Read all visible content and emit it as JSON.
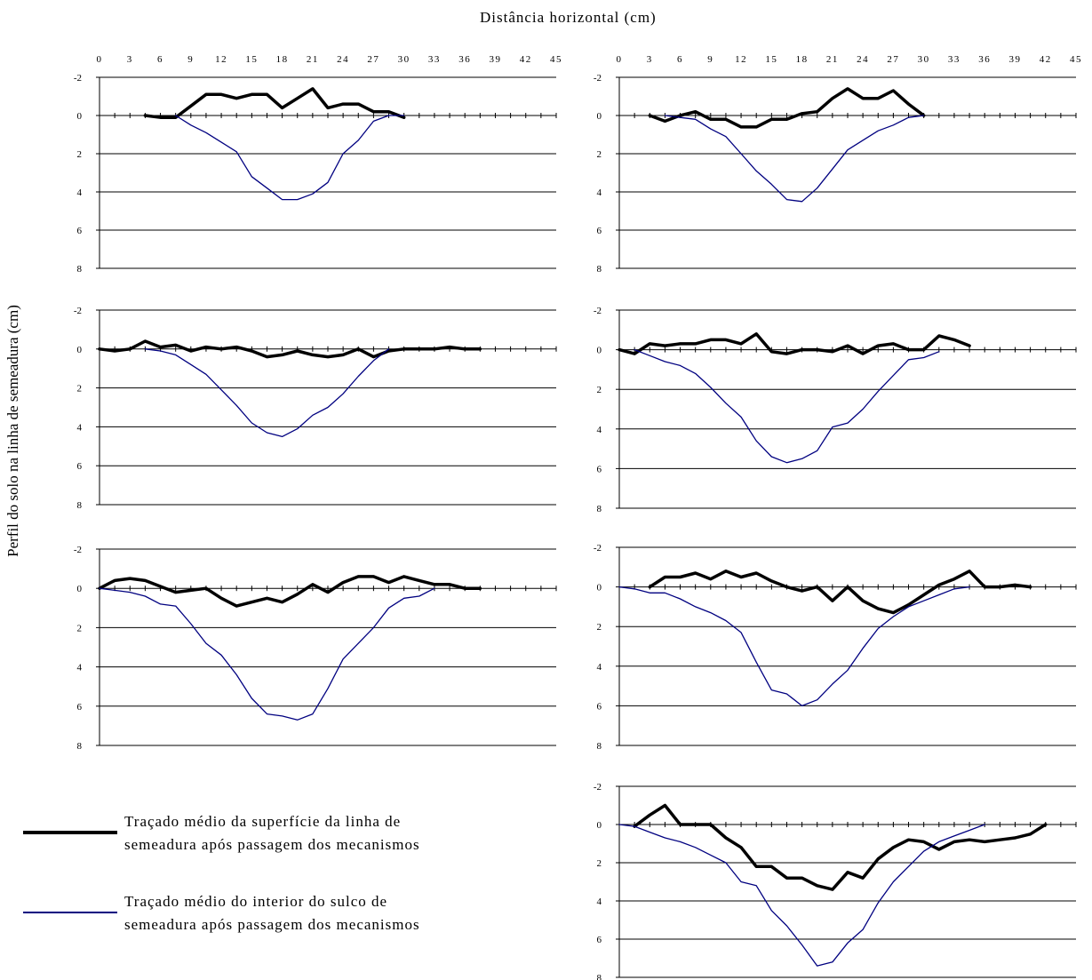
{
  "x_axis_title": "Distância horizontal (cm)",
  "y_axis_title": "Perfil do solo na linha de semeadura (cm)",
  "legend": {
    "surface_line1": "Traçado médio da superfície da linha de",
    "surface_line2": "semeadura após passagem dos mecanismos",
    "interior_line1": "Traçado médio do interior do sulco de",
    "interior_line2": "semeadura após passagem dos mecanismos"
  },
  "colors": {
    "surface": "#000000",
    "interior": "#000080"
  },
  "chart_data": [
    {
      "type": "line",
      "panel": "left-top",
      "xlim": [
        0,
        45
      ],
      "ylim": [
        -2,
        8
      ],
      "y_inverted": true,
      "x_ticks": [
        0,
        3,
        6,
        9,
        12,
        15,
        18,
        21,
        24,
        27,
        30,
        33,
        36,
        39,
        42,
        45
      ],
      "y_ticks": [
        -2,
        0,
        2,
        4,
        6,
        8
      ],
      "grid": "horizontal",
      "series": [
        {
          "x": [
            4.5,
            6,
            7.5,
            9,
            10.5,
            12,
            13.5,
            15,
            16.5,
            18,
            19.5,
            21,
            22.5,
            24,
            25.5,
            27,
            28.5,
            30
          ],
          "y": [
            0,
            0.1,
            0.1,
            -0.5,
            -1.1,
            -1.1,
            -0.9,
            -1.1,
            -1.1,
            -0.4,
            -0.9,
            -1.4,
            -0.4,
            -0.6,
            -0.6,
            -0.2,
            -0.2,
            0.1
          ]
        },
        {
          "x": [
            7.5,
            9,
            10.5,
            12,
            13.5,
            15,
            16.5,
            18,
            19.5,
            21,
            22.5,
            24,
            25.5,
            27,
            28.5,
            30
          ],
          "y": [
            0,
            0.5,
            0.9,
            1.4,
            1.9,
            3.2,
            3.8,
            4.4,
            4.4,
            4.1,
            3.5,
            2.0,
            1.3,
            0.3,
            0,
            0
          ]
        }
      ]
    },
    {
      "type": "line",
      "panel": "right-top",
      "xlim": [
        0,
        45
      ],
      "ylim": [
        -2,
        8
      ],
      "y_inverted": true,
      "x_ticks": [
        0,
        3,
        6,
        9,
        12,
        15,
        18,
        21,
        24,
        27,
        30,
        33,
        36,
        39,
        42,
        45
      ],
      "y_ticks": [
        -2,
        0,
        2,
        4,
        6,
        8
      ],
      "grid": "horizontal",
      "series": [
        {
          "x": [
            3,
            4.5,
            6,
            7.5,
            9,
            10.5,
            12,
            13.5,
            15,
            16.5,
            18,
            19.5,
            21,
            22.5,
            24,
            25.5,
            27,
            28.5,
            30
          ],
          "y": [
            0,
            0.3,
            0,
            -0.2,
            0.2,
            0.2,
            0.6,
            0.6,
            0.2,
            0.2,
            -0.1,
            -0.2,
            -0.9,
            -1.4,
            -0.9,
            -0.9,
            -1.3,
            -0.6,
            0
          ]
        },
        {
          "x": [
            4.5,
            6,
            7.5,
            9,
            10.5,
            12,
            13.5,
            15,
            16.5,
            18,
            19.5,
            21,
            22.5,
            24,
            25.5,
            27,
            28.5,
            30
          ],
          "y": [
            0,
            0.1,
            0.2,
            0.7,
            1.1,
            2.0,
            2.9,
            3.6,
            4.4,
            4.5,
            3.8,
            2.8,
            1.8,
            1.3,
            0.8,
            0.5,
            0.1,
            0
          ]
        }
      ]
    },
    {
      "type": "line",
      "panel": "left-middle",
      "xlim": [
        0,
        45
      ],
      "ylim": [
        -2,
        8
      ],
      "y_inverted": true,
      "x_ticks": [],
      "y_ticks": [
        -2,
        0,
        2,
        4,
        6,
        8
      ],
      "grid": "horizontal",
      "series": [
        {
          "x": [
            0,
            1.5,
            3,
            4.5,
            6,
            7.5,
            9,
            10.5,
            12,
            13.5,
            15,
            16.5,
            18,
            19.5,
            21,
            22.5,
            24,
            25.5,
            27,
            28.5,
            30,
            31.5,
            33,
            34.5,
            36,
            37.5
          ],
          "y": [
            0,
            0.1,
            0,
            -0.4,
            -0.1,
            -0.2,
            0.1,
            -0.1,
            0,
            -0.1,
            0.1,
            0.4,
            0.3,
            0.1,
            0.3,
            0.4,
            0.3,
            0,
            0.4,
            0.1,
            0,
            0,
            0,
            -0.1,
            0,
            0
          ]
        },
        {
          "x": [
            4.5,
            6,
            7.5,
            9,
            10.5,
            12,
            13.5,
            15,
            16.5,
            18,
            19.5,
            21,
            22.5,
            24,
            25.5,
            27,
            28.5
          ],
          "y": [
            0,
            0.1,
            0.3,
            0.8,
            1.3,
            2.1,
            2.9,
            3.8,
            4.3,
            4.5,
            4.1,
            3.4,
            3.0,
            2.3,
            1.4,
            0.6,
            0
          ]
        }
      ]
    },
    {
      "type": "line",
      "panel": "right-middle",
      "xlim": [
        0,
        45
      ],
      "ylim": [
        -2,
        8
      ],
      "y_inverted": true,
      "x_ticks": [],
      "y_ticks": [
        -2,
        0,
        2,
        4,
        6,
        8
      ],
      "grid": "horizontal",
      "series": [
        {
          "x": [
            0,
            1.5,
            3,
            4.5,
            6,
            7.5,
            9,
            10.5,
            12,
            13.5,
            15,
            16.5,
            18,
            19.5,
            21,
            22.5,
            24,
            25.5,
            27,
            28.5,
            30,
            31.5,
            33,
            34.5
          ],
          "y": [
            0,
            0.2,
            -0.3,
            -0.2,
            -0.3,
            -0.3,
            -0.5,
            -0.5,
            -0.3,
            -0.8,
            0.1,
            0.2,
            0,
            0,
            0.1,
            -0.2,
            0.2,
            -0.2,
            -0.3,
            0,
            0,
            -0.7,
            -0.5,
            -0.2
          ]
        },
        {
          "x": [
            1.5,
            3,
            4.5,
            6,
            7.5,
            9,
            10.5,
            12,
            13.5,
            15,
            16.5,
            18,
            19.5,
            21,
            22.5,
            24,
            25.5,
            27,
            28.5,
            30,
            31.5
          ],
          "y": [
            0,
            0.3,
            0.6,
            0.8,
            1.2,
            1.9,
            2.7,
            3.4,
            4.6,
            5.4,
            5.7,
            5.5,
            5.1,
            3.9,
            3.7,
            3.0,
            2.1,
            1.3,
            0.5,
            0.4,
            0.1
          ]
        }
      ]
    },
    {
      "type": "line",
      "panel": "left-bottom",
      "xlim": [
        0,
        45
      ],
      "ylim": [
        -2,
        8
      ],
      "y_inverted": true,
      "x_ticks": [],
      "y_ticks": [
        -2,
        0,
        2,
        4,
        6,
        8
      ],
      "grid": "horizontal",
      "series": [
        {
          "x": [
            0,
            1.5,
            3,
            4.5,
            6,
            7.5,
            9,
            10.5,
            12,
            13.5,
            15,
            16.5,
            18,
            19.5,
            21,
            22.5,
            24,
            25.5,
            27,
            28.5,
            30,
            31.5,
            33,
            34.5,
            36,
            37.5
          ],
          "y": [
            0,
            -0.4,
            -0.5,
            -0.4,
            -0.1,
            0.2,
            0.1,
            0,
            0.5,
            0.9,
            0.7,
            0.5,
            0.7,
            0.3,
            -0.2,
            0.2,
            -0.3,
            -0.6,
            -0.6,
            -0.3,
            -0.6,
            -0.4,
            -0.2,
            -0.2,
            0,
            0
          ]
        },
        {
          "x": [
            0,
            1.5,
            3,
            4.5,
            6,
            7.5,
            9,
            10.5,
            12,
            13.5,
            15,
            16.5,
            18,
            19.5,
            21,
            22.5,
            24,
            25.5,
            27,
            28.5,
            30,
            31.5,
            33
          ],
          "y": [
            0,
            0.1,
            0.2,
            0.4,
            0.8,
            0.9,
            1.8,
            2.8,
            3.4,
            4.4,
            5.6,
            6.4,
            6.5,
            6.7,
            6.4,
            5.1,
            3.6,
            2.8,
            2.0,
            1.0,
            0.5,
            0.4,
            0
          ]
        }
      ]
    },
    {
      "type": "line",
      "panel": "right-bottom",
      "xlim": [
        0,
        45
      ],
      "ylim": [
        -2,
        8
      ],
      "y_inverted": true,
      "x_ticks": [],
      "y_ticks": [
        -2,
        0,
        2,
        4,
        6,
        8
      ],
      "grid": "horizontal",
      "series": [
        {
          "x": [
            3,
            4.5,
            6,
            7.5,
            9,
            10.5,
            12,
            13.5,
            15,
            16.5,
            18,
            19.5,
            21,
            22.5,
            24,
            25.5,
            27,
            28.5,
            30,
            31.5,
            33,
            34.5,
            36,
            37.5,
            39,
            40.5
          ],
          "y": [
            0,
            -0.5,
            -0.5,
            -0.7,
            -0.4,
            -0.8,
            -0.5,
            -0.7,
            -0.3,
            0,
            0.2,
            0,
            0.7,
            0,
            0.7,
            1.1,
            1.3,
            0.9,
            0.4,
            -0.1,
            -0.4,
            -0.8,
            0,
            0,
            -0.1,
            0
          ]
        },
        {
          "x": [
            0,
            1.5,
            3,
            4.5,
            6,
            7.5,
            9,
            10.5,
            12,
            13.5,
            15,
            16.5,
            18,
            19.5,
            21,
            22.5,
            24,
            25.5,
            27,
            28.5,
            30,
            31.5,
            33,
            34.5
          ],
          "y": [
            0,
            0.1,
            0.3,
            0.3,
            0.6,
            1.0,
            1.3,
            1.7,
            2.3,
            3.8,
            5.2,
            5.4,
            6.0,
            5.7,
            4.9,
            4.2,
            3.1,
            2.1,
            1.5,
            1.0,
            0.7,
            0.4,
            0.1,
            0
          ]
        }
      ]
    },
    {
      "type": "line",
      "panel": "right-extra",
      "xlim": [
        0,
        45
      ],
      "ylim": [
        -2,
        8
      ],
      "y_inverted": true,
      "x_ticks": [],
      "y_ticks": [
        -2,
        0,
        2,
        4,
        6,
        8
      ],
      "grid": "horizontal",
      "series": [
        {
          "x": [
            1.5,
            3,
            4.5,
            6,
            7.5,
            9,
            10.5,
            12,
            13.5,
            15,
            16.5,
            18,
            19.5,
            21,
            22.5,
            24,
            25.5,
            27,
            28.5,
            30,
            31.5,
            33,
            34.5,
            36,
            37.5,
            39,
            40.5,
            42
          ],
          "y": [
            0.1,
            -0.5,
            -1.0,
            0,
            0,
            0,
            0.7,
            1.2,
            2.2,
            2.2,
            2.8,
            2.8,
            3.2,
            3.4,
            2.5,
            2.8,
            1.8,
            1.2,
            0.8,
            0.9,
            1.3,
            0.9,
            0.8,
            0.9,
            0.8,
            0.7,
            0.5,
            0
          ]
        },
        {
          "x": [
            0,
            1.5,
            3,
            4.5,
            6,
            7.5,
            9,
            10.5,
            12,
            13.5,
            15,
            16.5,
            18,
            19.5,
            21,
            22.5,
            24,
            25.5,
            27,
            28.5,
            30,
            31.5,
            33,
            34.5,
            36
          ],
          "y": [
            0,
            0.1,
            0.4,
            0.7,
            0.9,
            1.2,
            1.6,
            2.0,
            3.0,
            3.2,
            4.5,
            5.3,
            6.3,
            7.4,
            7.2,
            6.2,
            5.5,
            4.1,
            3.0,
            2.2,
            1.4,
            0.9,
            0.6,
            0.3,
            0
          ]
        }
      ]
    }
  ]
}
